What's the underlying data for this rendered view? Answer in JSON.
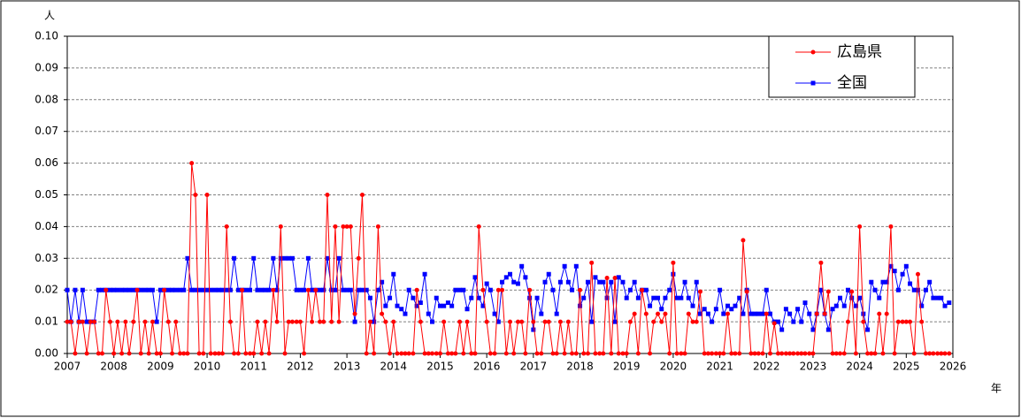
{
  "chart_data": {
    "type": "line",
    "y_unit": "人",
    "x_unit": "年",
    "xlim": [
      2007,
      2026
    ],
    "xticks": [
      2007,
      2008,
      2009,
      2010,
      2011,
      2012,
      2013,
      2014,
      2015,
      2016,
      2017,
      2018,
      2019,
      2020,
      2021,
      2022,
      2023,
      2024,
      2025,
      2026
    ],
    "ylim": [
      0,
      0.1
    ],
    "yticks": [
      {
        "value": 0,
        "label": "0.00"
      },
      {
        "value": 0.01,
        "label": "0.01"
      },
      {
        "value": 0.02,
        "label": "0.02"
      },
      {
        "value": 0.03,
        "label": "0.03"
      },
      {
        "value": 0.04,
        "label": "0.04"
      },
      {
        "value": 0.05,
        "label": "0.05"
      },
      {
        "value": 0.06,
        "label": "0.06"
      },
      {
        "value": 0.07,
        "label": "0.07"
      },
      {
        "value": 0.08,
        "label": "0.08"
      },
      {
        "value": 0.09,
        "label": "0.09"
      },
      {
        "value": 0.1,
        "label": "0.10"
      }
    ],
    "grid": true,
    "legend": "upper right",
    "x": [
      2007,
      2007.08,
      2007.17,
      2007.25,
      2007.33,
      2007.42,
      2007.5,
      2007.58,
      2007.67,
      2007.75,
      2007.83,
      2007.92,
      2008,
      2008.08,
      2008.17,
      2008.25,
      2008.33,
      2008.42,
      2008.5,
      2008.58,
      2008.67,
      2008.75,
      2008.83,
      2008.92,
      2009,
      2009.08,
      2009.17,
      2009.25,
      2009.33,
      2009.42,
      2009.5,
      2009.58,
      2009.67,
      2009.75,
      2009.83,
      2009.92,
      2010,
      2010.08,
      2010.17,
      2010.25,
      2010.33,
      2010.42,
      2010.5,
      2010.58,
      2010.67,
      2010.75,
      2010.83,
      2010.92,
      2011,
      2011.08,
      2011.17,
      2011.25,
      2011.33,
      2011.42,
      2011.5,
      2011.58,
      2011.67,
      2011.75,
      2011.83,
      2011.92,
      2012,
      2012.08,
      2012.17,
      2012.25,
      2012.33,
      2012.42,
      2012.5,
      2012.58,
      2012.67,
      2012.75,
      2012.83,
      2012.92,
      2013,
      2013.08,
      2013.17,
      2013.25,
      2013.33,
      2013.42,
      2013.5,
      2013.58,
      2013.67,
      2013.75,
      2013.83,
      2013.92,
      2014,
      2014.08,
      2014.17,
      2014.25,
      2014.33,
      2014.42,
      2014.5,
      2014.58,
      2014.67,
      2014.75,
      2014.83,
      2014.92,
      2015,
      2015.08,
      2015.17,
      2015.25,
      2015.33,
      2015.42,
      2015.5,
      2015.58,
      2015.67,
      2015.75,
      2015.83,
      2015.92,
      2016,
      2016.08,
      2016.17,
      2016.25,
      2016.33,
      2016.42,
      2016.5,
      2016.58,
      2016.67,
      2016.75,
      2016.83,
      2016.92,
      2017,
      2017.08,
      2017.17,
      2017.25,
      2017.33,
      2017.42,
      2017.5,
      2017.58,
      2017.67,
      2017.75,
      2017.83,
      2017.92,
      2018,
      2018.08,
      2018.17,
      2018.25,
      2018.33,
      2018.42,
      2018.5,
      2018.58,
      2018.67,
      2018.75,
      2018.83,
      2018.92,
      2019,
      2019.08,
      2019.17,
      2019.25,
      2019.33,
      2019.42,
      2019.5,
      2019.58,
      2019.67,
      2019.75,
      2019.83,
      2019.92,
      2020,
      2020.08,
      2020.17,
      2020.25,
      2020.33,
      2020.42,
      2020.5,
      2020.58,
      2020.67,
      2020.75,
      2020.83,
      2020.92,
      2021,
      2021.08,
      2021.17,
      2021.25,
      2021.33,
      2021.42,
      2021.5,
      2021.58,
      2021.67,
      2021.75,
      2021.83,
      2021.92,
      2022,
      2022.08,
      2022.17,
      2022.25,
      2022.33,
      2022.42,
      2022.5,
      2022.58,
      2022.67,
      2022.75,
      2022.83,
      2022.92,
      2023,
      2023.08,
      2023.17,
      2023.25,
      2023.33,
      2023.42,
      2023.5,
      2023.58,
      2023.67,
      2023.75,
      2023.83,
      2023.92,
      2024,
      2024.08,
      2024.17,
      2024.25,
      2024.33,
      2024.42,
      2024.5,
      2024.58,
      2024.67,
      2024.75,
      2024.83,
      2024.92,
      2025,
      2025.08,
      2025.17,
      2025.25,
      2025.33,
      2025.42,
      2025.5,
      2025.58,
      2025.67,
      2025.75,
      2025.83,
      2025.92
    ],
    "series": [
      {
        "name": "広島県",
        "color": "#ff0000",
        "marker": "circle",
        "values": [
          0.01,
          0.01,
          0,
          0.01,
          0.01,
          0,
          0.01,
          0.01,
          0,
          0,
          0.02,
          0.01,
          0,
          0.01,
          0,
          0.01,
          0,
          0.01,
          0.02,
          0,
          0.01,
          0,
          0.01,
          0,
          0,
          0.02,
          0.01,
          0,
          0.01,
          0,
          0,
          0,
          0.06,
          0.05,
          0,
          0,
          0.05,
          0,
          0,
          0,
          0,
          0.04,
          0.01,
          0,
          0,
          0.02,
          0,
          0,
          0,
          0.01,
          0,
          0.01,
          0,
          0.02,
          0.01,
          0.04,
          0,
          0.01,
          0.01,
          0.01,
          0.01,
          0,
          0.02,
          0.01,
          0.02,
          0.01,
          0.01,
          0.05,
          0.01,
          0.04,
          0.01,
          0.04,
          0.04,
          0.04,
          0.0125,
          0.03,
          0.05,
          0,
          0.01,
          0,
          0.04,
          0.0125,
          0.01,
          0,
          0.01,
          0,
          0,
          0,
          0,
          0,
          0.02,
          0.01,
          0,
          0,
          0,
          0,
          0,
          0.01,
          0,
          0,
          0,
          0.01,
          0,
          0.01,
          0,
          0,
          0.04,
          0.02,
          0.01,
          0,
          0,
          0.02,
          0.02,
          0,
          0.01,
          0,
          0.01,
          0.01,
          0,
          0.02,
          0.01,
          0,
          0,
          0.01,
          0.01,
          0,
          0,
          0.01,
          0,
          0.01,
          0,
          0,
          0.02,
          0,
          0,
          0.0286,
          0,
          0,
          0,
          0.0238,
          0,
          0.0238,
          0,
          0,
          0,
          0.01,
          0.0125,
          0,
          0.02,
          0.0125,
          0,
          0.01,
          0.0125,
          0.01,
          0.0125,
          0,
          0.0286,
          0,
          0,
          0,
          0.0125,
          0.01,
          0.01,
          0.0195,
          0,
          0,
          0,
          0,
          0,
          0,
          0.0125,
          0,
          0,
          0,
          0.0357,
          0.0195,
          0,
          0,
          0,
          0,
          0.0125,
          0,
          0.0095,
          0,
          0,
          0,
          0,
          0,
          0,
          0,
          0,
          0,
          0,
          0.0125,
          0.0286,
          0.0125,
          0.0195,
          0,
          0,
          0,
          0,
          0.01,
          0.0195,
          0,
          0.04,
          0.01,
          0,
          0,
          0,
          0.0125,
          0,
          0.0125,
          0.04,
          0,
          0.01,
          0.01,
          0.01,
          0.01,
          0,
          0.025,
          0.01,
          0,
          0,
          0,
          0,
          0,
          0,
          0
        ]
      },
      {
        "name": "全国",
        "color": "#0000ff",
        "marker": "square",
        "values": [
          0.02,
          0.01,
          0.02,
          0.01,
          0.02,
          0.01,
          0.01,
          0.01,
          0.02,
          0.02,
          0.02,
          0.02,
          0.02,
          0.02,
          0.02,
          0.02,
          0.02,
          0.02,
          0.02,
          0.02,
          0.02,
          0.02,
          0.02,
          0.01,
          0.02,
          0.02,
          0.02,
          0.02,
          0.02,
          0.02,
          0.02,
          0.03,
          0.02,
          0.02,
          0.02,
          0.02,
          0.02,
          0.02,
          0.02,
          0.02,
          0.02,
          0.02,
          0.02,
          0.03,
          0.02,
          0.02,
          0.02,
          0.02,
          0.03,
          0.02,
          0.02,
          0.02,
          0.02,
          0.03,
          0.02,
          0.03,
          0.03,
          0.03,
          0.03,
          0.02,
          0.02,
          0.02,
          0.03,
          0.02,
          0.02,
          0.02,
          0.02,
          0.03,
          0.02,
          0.02,
          0.03,
          0.02,
          0.02,
          0.02,
          0.01,
          0.02,
          0.02,
          0.02,
          0.0175,
          0.01,
          0.02,
          0.0225,
          0.015,
          0.0175,
          0.025,
          0.015,
          0.014,
          0.0125,
          0.02,
          0.0175,
          0.015,
          0.016,
          0.025,
          0.0125,
          0.01,
          0.0175,
          0.015,
          0.015,
          0.016,
          0.015,
          0.02,
          0.02,
          0.02,
          0.014,
          0.0175,
          0.024,
          0.0175,
          0.015,
          0.022,
          0.02,
          0.0125,
          0.01,
          0.0225,
          0.024,
          0.025,
          0.0225,
          0.022,
          0.0275,
          0.024,
          0.0175,
          0.0075,
          0.0175,
          0.0125,
          0.0225,
          0.025,
          0.02,
          0.0125,
          0.0225,
          0.0275,
          0.0225,
          0.02,
          0.0275,
          0.015,
          0.0175,
          0.0225,
          0.01,
          0.024,
          0.0225,
          0.0225,
          0.0175,
          0.0225,
          0.01,
          0.024,
          0.0225,
          0.0175,
          0.02,
          0.0225,
          0.0175,
          0.02,
          0.02,
          0.015,
          0.0175,
          0.0175,
          0.014,
          0.0175,
          0.02,
          0.025,
          0.0175,
          0.0175,
          0.0225,
          0.0175,
          0.015,
          0.0225,
          0.0125,
          0.014,
          0.0125,
          0.01,
          0.014,
          0.02,
          0.0125,
          0.015,
          0.014,
          0.015,
          0.0175,
          0.0125,
          0.02,
          0.0125,
          0.0125,
          0.0125,
          0.0125,
          0.02,
          0.0125,
          0.01,
          0.01,
          0.0075,
          0.014,
          0.0125,
          0.01,
          0.014,
          0.01,
          0.016,
          0.0125,
          0.0075,
          0.0125,
          0.02,
          0.0125,
          0.0075,
          0.014,
          0.015,
          0.0175,
          0.015,
          0.02,
          0.0175,
          0.015,
          0.0175,
          0.0125,
          0.0075,
          0.0225,
          0.02,
          0.0175,
          0.0225,
          0.0225,
          0.0275,
          0.026,
          0.02,
          0.025,
          0.0275,
          0.022,
          0.02,
          0.02,
          0.015,
          0.02,
          0.0225,
          0.0175,
          0.0175,
          0.0175,
          0.015,
          0.016
        ]
      }
    ]
  }
}
